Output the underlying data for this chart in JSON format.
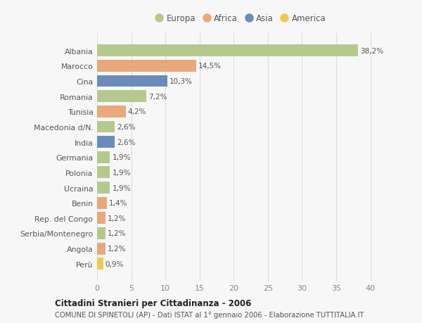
{
  "categories": [
    "Albania",
    "Marocco",
    "Cina",
    "Romania",
    "Tunisia",
    "Macedonia d/N.",
    "India",
    "Germania",
    "Polonia",
    "Ucraina",
    "Benin",
    "Rep. del Congo",
    "Serbia/Montenegro",
    "Angola",
    "Perù"
  ],
  "values": [
    38.2,
    14.5,
    10.3,
    7.2,
    4.2,
    2.6,
    2.6,
    1.9,
    1.9,
    1.9,
    1.4,
    1.2,
    1.2,
    1.2,
    0.9
  ],
  "labels": [
    "38,2%",
    "14,5%",
    "10,3%",
    "7,2%",
    "4,2%",
    "2,6%",
    "2,6%",
    "1,9%",
    "1,9%",
    "1,9%",
    "1,4%",
    "1,2%",
    "1,2%",
    "1,2%",
    "0,9%"
  ],
  "colors": [
    "#b5c98e",
    "#e8a87c",
    "#6b8cba",
    "#b5c98e",
    "#e8a87c",
    "#b5c98e",
    "#6b8cba",
    "#b5c98e",
    "#b5c98e",
    "#b5c98e",
    "#e8a87c",
    "#e8a87c",
    "#b5c98e",
    "#e8a87c",
    "#f0c95a"
  ],
  "legend": [
    {
      "label": "Europa",
      "color": "#b5c98e"
    },
    {
      "label": "Africa",
      "color": "#e8a87c"
    },
    {
      "label": "Asia",
      "color": "#6b8cba"
    },
    {
      "label": "America",
      "color": "#f0c95a"
    }
  ],
  "xlim": [
    0,
    42
  ],
  "xticks": [
    0,
    5,
    10,
    15,
    20,
    25,
    30,
    35,
    40
  ],
  "title_bold": "Cittadini Stranieri per Cittadinanza - 2006",
  "subtitle": "COMUNE DI SPINETOLI (AP) - Dati ISTAT al 1° gennaio 2006 - Elaborazione TUTTITALIA.IT",
  "bg_color": "#f7f7f7",
  "grid_color": "#dddddd",
  "bar_height": 0.78
}
